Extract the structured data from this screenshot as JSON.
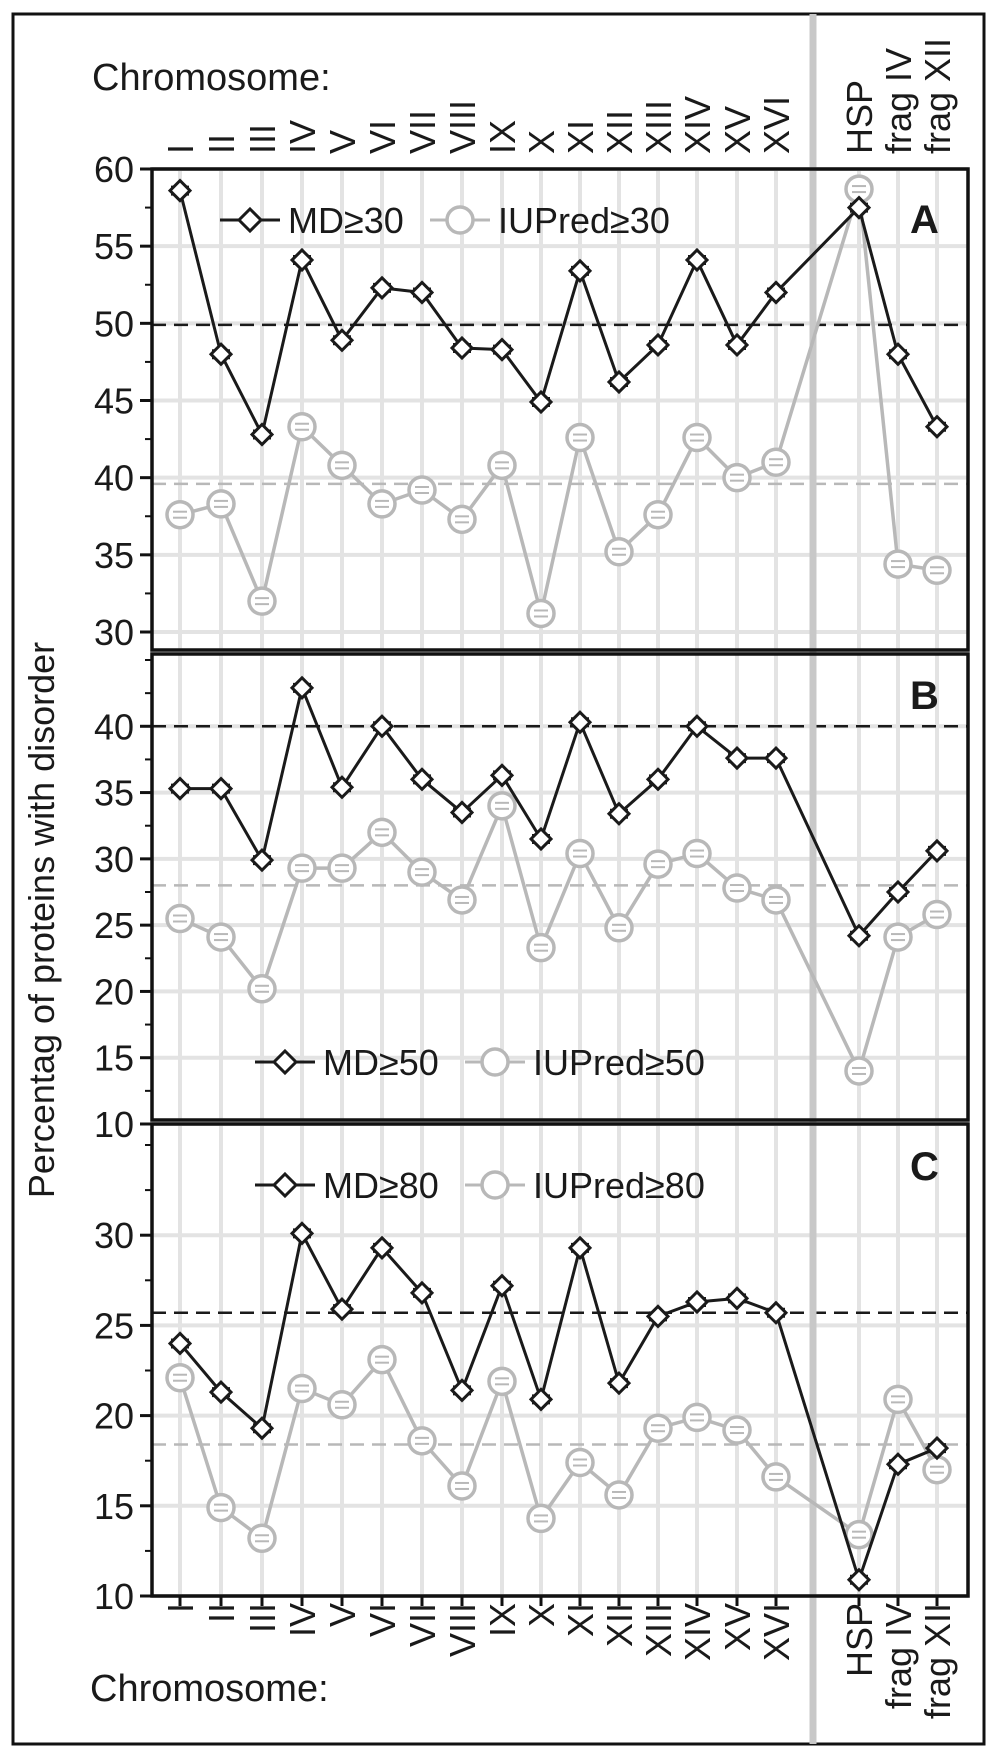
{
  "figure": {
    "top_label": "Chromosome:",
    "bottom_label": "Chromosome:",
    "ylabel": "Percentag of proteins with disorder"
  },
  "colors": {
    "md": "#1a1a1a",
    "iupred": "#b8b8b8",
    "grid": "#e3e3e3",
    "separator": "#c8c8c8"
  },
  "chart_data": [
    {
      "type": "line",
      "panel": "A",
      "categories": [
        "I",
        "II",
        "III",
        "IV",
        "V",
        "VI",
        "VII",
        "VIII",
        "IX",
        "X",
        "XI",
        "XII",
        "XIII",
        "XIV",
        "XV",
        "XVI",
        "HSP",
        "frag IV",
        "frag XII"
      ],
      "ylim": [
        30,
        60
      ],
      "yticks": [
        30,
        35,
        40,
        45,
        50,
        55,
        60
      ],
      "series": [
        {
          "name": "MD≥30",
          "marker": "diamond",
          "values": [
            58.6,
            48.0,
            42.8,
            54.1,
            48.9,
            52.3,
            52.0,
            48.4,
            48.3,
            44.9,
            53.4,
            46.2,
            48.6,
            54.1,
            48.6,
            52.0,
            57.5,
            48.0,
            43.3
          ]
        },
        {
          "name": "IUPred≥30",
          "marker": "circle",
          "values": [
            37.6,
            38.3,
            32.0,
            43.3,
            40.8,
            38.3,
            39.2,
            37.3,
            40.8,
            31.2,
            42.6,
            35.2,
            37.6,
            42.6,
            40.0,
            41.0,
            58.7,
            34.4,
            34.0
          ]
        }
      ],
      "reference_lines": [
        {
          "series": "MD≥30",
          "value": 49.9
        },
        {
          "series": "IUPred≥30",
          "value": 39.6
        }
      ],
      "legend": "top-center",
      "grid": true
    },
    {
      "type": "line",
      "panel": "B",
      "categories": [
        "I",
        "II",
        "III",
        "IV",
        "V",
        "VI",
        "VII",
        "VIII",
        "IX",
        "X",
        "XI",
        "XII",
        "XIII",
        "XIV",
        "XV",
        "XVI",
        "HSP",
        "frag IV",
        "frag XII"
      ],
      "ylim": [
        10,
        45
      ],
      "yticks": [
        10,
        15,
        20,
        25,
        30,
        35,
        40
      ],
      "series": [
        {
          "name": "MD≥50",
          "marker": "diamond",
          "values": [
            35.3,
            35.3,
            29.9,
            42.9,
            35.4,
            40.0,
            36.0,
            33.5,
            36.3,
            31.5,
            40.3,
            33.4,
            36.0,
            40.0,
            37.6,
            37.6,
            24.2,
            27.5,
            30.6
          ]
        },
        {
          "name": "IUPred≥50",
          "marker": "circle",
          "values": [
            25.5,
            24.1,
            20.2,
            29.3,
            29.3,
            32.0,
            29.0,
            26.9,
            34.0,
            23.3,
            30.4,
            24.8,
            29.6,
            30.4,
            27.8,
            26.9,
            14.0,
            24.1,
            25.8
          ]
        }
      ],
      "reference_lines": [
        {
          "series": "MD≥50",
          "value": 40.0
        },
        {
          "series": "IUPred≥50",
          "value": 28.0
        }
      ],
      "legend": "bottom-center",
      "grid": true
    },
    {
      "type": "line",
      "panel": "C",
      "categories": [
        "I",
        "II",
        "III",
        "IV",
        "V",
        "VI",
        "VII",
        "VIII",
        "IX",
        "X",
        "XI",
        "XII",
        "XIII",
        "XIV",
        "XV",
        "XVI",
        "HSP",
        "frag IV",
        "frag XII"
      ],
      "ylim": [
        10,
        35
      ],
      "yticks": [
        10,
        15,
        20,
        25,
        30
      ],
      "series": [
        {
          "name": "MD≥80",
          "marker": "diamond",
          "values": [
            24.0,
            21.3,
            19.3,
            30.1,
            25.9,
            29.3,
            26.8,
            21.4,
            27.2,
            20.9,
            29.3,
            21.8,
            25.5,
            26.3,
            26.5,
            25.7,
            10.9,
            17.3,
            18.2
          ]
        },
        {
          "name": "IUPred≥80",
          "marker": "circle",
          "values": [
            22.1,
            14.9,
            13.2,
            21.5,
            20.6,
            23.1,
            18.6,
            16.1,
            21.9,
            14.3,
            17.4,
            15.6,
            19.3,
            19.9,
            19.2,
            16.6,
            13.4,
            20.9,
            17.0
          ]
        }
      ],
      "reference_lines": [
        {
          "series": "MD≥80",
          "value": 25.7
        },
        {
          "series": "IUPred≥80",
          "value": 18.4
        }
      ],
      "legend": "top-center",
      "grid": true
    }
  ]
}
